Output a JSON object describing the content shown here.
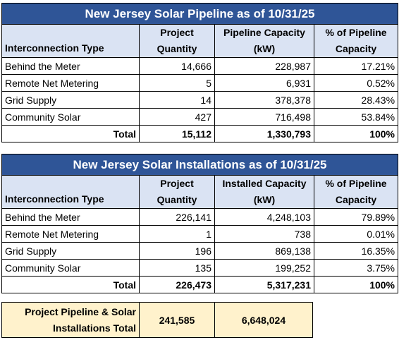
{
  "pipeline": {
    "title": "New Jersey Solar Pipeline as of 10/31/25",
    "headers": {
      "type": "Interconnection Type",
      "qty_1": "Project",
      "qty_2": "Quantity",
      "cap_1": "Pipeline Capacity",
      "cap_2": "(kW)",
      "pct_1": "% of Pipeline",
      "pct_2": "Capacity"
    },
    "rows": [
      {
        "type": "Behind the Meter",
        "qty": "14,666",
        "cap": "228,987",
        "pct": "17.21%"
      },
      {
        "type": "Remote Net Metering",
        "qty": "5",
        "cap": "6,931",
        "pct": "0.52%"
      },
      {
        "type": "Grid Supply",
        "qty": "14",
        "cap": "378,378",
        "pct": "28.43%"
      },
      {
        "type": "Community Solar",
        "qty": "427",
        "cap": "716,498",
        "pct": "53.84%"
      }
    ],
    "total": {
      "label": "Total",
      "qty": "15,112",
      "cap": "1,330,793",
      "pct": "100%"
    }
  },
  "installations": {
    "title": "New Jersey Solar Installations as of 10/31/25",
    "headers": {
      "type": "Interconnection Type",
      "qty_1": "Project",
      "qty_2": "Quantity",
      "cap_1": "Installed Capacity",
      "cap_2": "(kW)",
      "pct_1": "% of Pipeline",
      "pct_2": "Capacity"
    },
    "rows": [
      {
        "type": "Behind the Meter",
        "qty": "226,141",
        "cap": "4,248,103",
        "pct": "79.89%"
      },
      {
        "type": "Remote Net Metering",
        "qty": "1",
        "cap": "738",
        "pct": "0.01%"
      },
      {
        "type": "Grid Supply",
        "qty": "196",
        "cap": "869,138",
        "pct": "16.35%"
      },
      {
        "type": "Community Solar",
        "qty": "135",
        "cap": "199,252",
        "pct": "3.75%"
      }
    ],
    "total": {
      "label": "Total",
      "qty": "226,473",
      "cap": "5,317,231",
      "pct": "100%"
    }
  },
  "grand_total": {
    "label_1": "Project Pipeline & Solar",
    "label_2": "Installations Total",
    "qty": "241,585",
    "cap": "6,648,024"
  }
}
